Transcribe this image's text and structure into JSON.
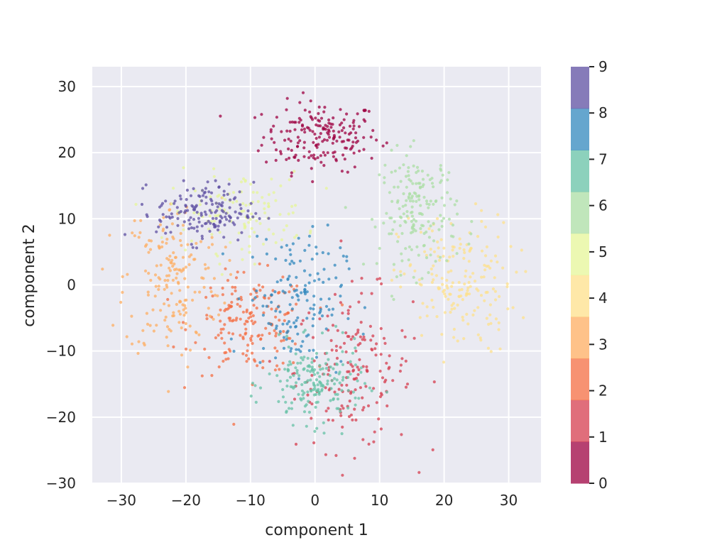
{
  "chart_data": {
    "type": "scatter",
    "title": "",
    "xlabel": "component 1",
    "ylabel": "component 2",
    "xlim": [
      -34.5,
      35
    ],
    "ylim": [
      -30,
      33
    ],
    "xticks": [
      -30,
      -20,
      -10,
      0,
      10,
      20,
      30
    ],
    "yticks": [
      -30,
      -20,
      -10,
      0,
      10,
      20,
      30
    ],
    "xtick_labels": [
      "−30",
      "−20",
      "−10",
      "0",
      "10",
      "20",
      "30"
    ],
    "ytick_labels": [
      "−30",
      "−20",
      "−10",
      "0",
      "10",
      "20",
      "30"
    ],
    "grid": true,
    "background": "#eaeaf2",
    "colorbar": {
      "ticks": [
        "0",
        "1",
        "2",
        "3",
        "4",
        "5",
        "6",
        "7",
        "8",
        "9"
      ],
      "range": [
        0,
        9
      ],
      "colors": [
        "#9e0142",
        "#d53e4f",
        "#f46d43",
        "#fdae61",
        "#fee08b",
        "#e6f598",
        "#abdda4",
        "#66c2a5",
        "#3288bd",
        "#5e4fa2"
      ],
      "alpha": 0.75
    },
    "clusters": [
      {
        "label": 0,
        "center": [
          1,
          22.5
        ],
        "spread": [
          6,
          3.5
        ],
        "count": 190
      },
      {
        "label": 1,
        "center": [
          6,
          -13
        ],
        "spread": [
          6,
          8
        ],
        "count": 180
      },
      {
        "label": 2,
        "center": [
          -10,
          -6
        ],
        "spread": [
          6,
          5
        ],
        "count": 180
      },
      {
        "label": 3,
        "center": [
          -22,
          1
        ],
        "spread": [
          5,
          8
        ],
        "count": 180
      },
      {
        "label": 4,
        "center": [
          22,
          0
        ],
        "spread": [
          6,
          7
        ],
        "count": 180
      },
      {
        "label": 5,
        "center": [
          -12,
          11
        ],
        "spread": [
          7,
          4
        ],
        "count": 120
      },
      {
        "label": 6,
        "center": [
          16,
          11
        ],
        "spread": [
          4,
          6
        ],
        "count": 180
      },
      {
        "label": 7,
        "center": [
          0,
          -15
        ],
        "spread": [
          5,
          4
        ],
        "count": 180
      },
      {
        "label": 8,
        "center": [
          -3,
          -2
        ],
        "spread": [
          5,
          7
        ],
        "count": 150
      },
      {
        "label": 9,
        "center": [
          -17,
          11
        ],
        "spread": [
          5,
          3
        ],
        "count": 160
      }
    ]
  }
}
